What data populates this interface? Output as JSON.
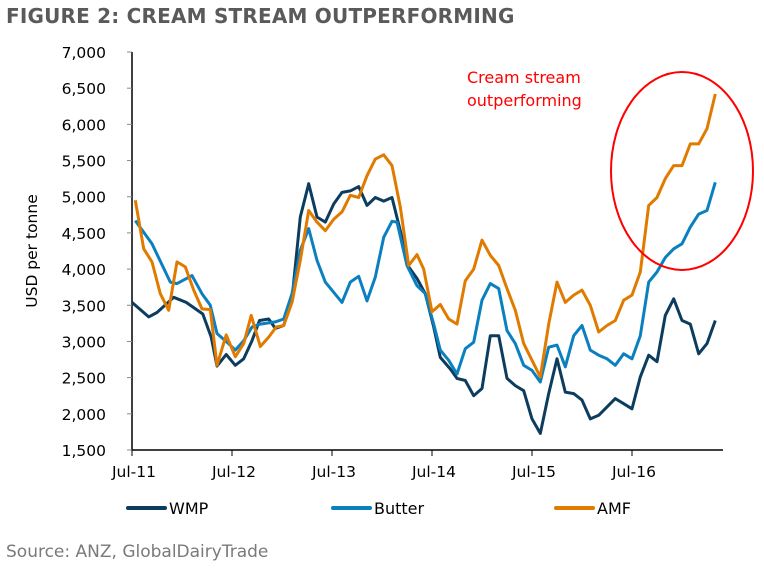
{
  "chart_data": {
    "type": "line",
    "title": "FIGURE 2: CREAM STREAM OUTPERFORMING",
    "xlabel": "",
    "ylabel": "USD per tonne",
    "x_unit": "months since Jul-11",
    "xlim": [
      0,
      71
    ],
    "ylim": [
      1500,
      7000
    ],
    "yticks": [
      1500,
      2000,
      2500,
      3000,
      3500,
      4000,
      4500,
      5000,
      5500,
      6000,
      6500,
      7000
    ],
    "ytick_labels": [
      "1,500",
      "2,000",
      "2,500",
      "3,000",
      "3,500",
      "4,000",
      "4,500",
      "5,000",
      "5,500",
      "6,000",
      "6,500",
      "7,000"
    ],
    "xticks": [
      0,
      12,
      24,
      36,
      48,
      60
    ],
    "xtick_labels": [
      "Jul-11",
      "Jul-12",
      "Jul-13",
      "Jul-14",
      "Jul-15",
      "Jul-16"
    ],
    "grid": false,
    "legend_position": "bottom",
    "annotation": {
      "text_line1": "Cream stream",
      "text_line2": "outperforming",
      "color": "#ff0000"
    },
    "source": "Source: ANZ, GlobalDairyTrade",
    "series": [
      {
        "name": "WMP",
        "color": "#0d3d5e",
        "points": [
          [
            0,
            3540
          ],
          [
            2,
            3340
          ],
          [
            3,
            3400
          ],
          [
            5,
            3610
          ],
          [
            6.5,
            3540
          ],
          [
            8.5,
            3380
          ],
          [
            9.5,
            3060
          ],
          [
            10.2,
            2660
          ],
          [
            11.3,
            2820
          ],
          [
            12.4,
            2670
          ],
          [
            13.4,
            2760
          ],
          [
            14.4,
            3010
          ],
          [
            15.3,
            3290
          ],
          [
            16.4,
            3310
          ],
          [
            17.2,
            3180
          ],
          [
            18.2,
            3220
          ],
          [
            19.2,
            3590
          ],
          [
            20.2,
            4720
          ],
          [
            21.2,
            5180
          ],
          [
            22.2,
            4720
          ],
          [
            23.2,
            4650
          ],
          [
            24.2,
            4900
          ],
          [
            25.2,
            5060
          ],
          [
            26.2,
            5080
          ],
          [
            27.2,
            5140
          ],
          [
            28.2,
            4880
          ],
          [
            29.2,
            4990
          ],
          [
            30.2,
            4940
          ],
          [
            31.2,
            4990
          ],
          [
            32.2,
            4530
          ],
          [
            33.2,
            4030
          ],
          [
            34.2,
            3870
          ],
          [
            35.2,
            3660
          ],
          [
            36.2,
            3200
          ],
          [
            37,
            2780
          ],
          [
            38.2,
            2620
          ],
          [
            39,
            2490
          ],
          [
            40,
            2460
          ],
          [
            41,
            2250
          ],
          [
            42,
            2350
          ],
          [
            43,
            3080
          ],
          [
            44,
            3080
          ],
          [
            45,
            2490
          ],
          [
            46,
            2390
          ],
          [
            47,
            2320
          ],
          [
            48,
            1930
          ],
          [
            49,
            1730
          ],
          [
            50,
            2280
          ],
          [
            51,
            2760
          ],
          [
            52,
            2300
          ],
          [
            53,
            2280
          ],
          [
            54,
            2190
          ],
          [
            55,
            1930
          ],
          [
            56,
            1980
          ],
          [
            58,
            2210
          ],
          [
            59,
            2140
          ],
          [
            60,
            2070
          ],
          [
            61,
            2510
          ],
          [
            62,
            2810
          ],
          [
            63,
            2720
          ],
          [
            64,
            3360
          ],
          [
            65,
            3590
          ],
          [
            66,
            3290
          ],
          [
            67,
            3240
          ],
          [
            68,
            2830
          ],
          [
            69,
            2970
          ],
          [
            70,
            3290
          ]
        ]
      },
      {
        "name": "Butter",
        "color": "#0b80c0",
        "points": [
          [
            0.4,
            4670
          ],
          [
            2.4,
            4350
          ],
          [
            4.6,
            3820
          ],
          [
            5.4,
            3800
          ],
          [
            7.2,
            3910
          ],
          [
            8.4,
            3660
          ],
          [
            9.4,
            3500
          ],
          [
            10.2,
            3110
          ],
          [
            11.4,
            2990
          ],
          [
            12.4,
            2880
          ],
          [
            13.4,
            3010
          ],
          [
            14.4,
            3200
          ],
          [
            15.4,
            3240
          ],
          [
            17.2,
            3270
          ],
          [
            18.2,
            3310
          ],
          [
            19.2,
            3660
          ],
          [
            20.2,
            4260
          ],
          [
            21.2,
            4560
          ],
          [
            22.2,
            4120
          ],
          [
            23.2,
            3820
          ],
          [
            25.2,
            3540
          ],
          [
            26.2,
            3820
          ],
          [
            27.2,
            3900
          ],
          [
            28.2,
            3560
          ],
          [
            29.2,
            3890
          ],
          [
            30.2,
            4440
          ],
          [
            31.2,
            4660
          ],
          [
            31.8,
            4650
          ],
          [
            33,
            4050
          ],
          [
            34.2,
            3770
          ],
          [
            35.2,
            3660
          ],
          [
            36.2,
            3240
          ],
          [
            37,
            2880
          ],
          [
            38,
            2740
          ],
          [
            39,
            2550
          ],
          [
            40,
            2900
          ],
          [
            41,
            2990
          ],
          [
            42,
            3570
          ],
          [
            43,
            3800
          ],
          [
            44,
            3730
          ],
          [
            45,
            3150
          ],
          [
            46,
            2970
          ],
          [
            47,
            2670
          ],
          [
            48,
            2600
          ],
          [
            49,
            2440
          ],
          [
            50,
            2920
          ],
          [
            51,
            2950
          ],
          [
            52,
            2650
          ],
          [
            53,
            3080
          ],
          [
            54,
            3220
          ],
          [
            55,
            2880
          ],
          [
            56,
            2810
          ],
          [
            57,
            2760
          ],
          [
            58,
            2670
          ],
          [
            59,
            2830
          ],
          [
            60,
            2760
          ],
          [
            61,
            3080
          ],
          [
            62,
            3820
          ],
          [
            63,
            3960
          ],
          [
            64,
            4160
          ],
          [
            65,
            4280
          ],
          [
            66,
            4350
          ],
          [
            67,
            4580
          ],
          [
            68,
            4760
          ],
          [
            69,
            4810
          ],
          [
            70,
            5200
          ]
        ]
      },
      {
        "name": "AMF",
        "color": "#e07b00",
        "points": [
          [
            0.4,
            4950
          ],
          [
            1.4,
            4280
          ],
          [
            2.4,
            4100
          ],
          [
            3.4,
            3660
          ],
          [
            4.4,
            3430
          ],
          [
            5.4,
            4100
          ],
          [
            6.4,
            4030
          ],
          [
            7.4,
            3710
          ],
          [
            8.4,
            3450
          ],
          [
            9.4,
            3440
          ],
          [
            10.2,
            2670
          ],
          [
            11.3,
            3090
          ],
          [
            12.4,
            2790
          ],
          [
            13.4,
            2970
          ],
          [
            14.3,
            3360
          ],
          [
            15.4,
            2930
          ],
          [
            16.4,
            3060
          ],
          [
            17.3,
            3200
          ],
          [
            18.2,
            3220
          ],
          [
            19.2,
            3540
          ],
          [
            20.2,
            4120
          ],
          [
            21.2,
            4810
          ],
          [
            22.2,
            4650
          ],
          [
            23.2,
            4530
          ],
          [
            24.2,
            4690
          ],
          [
            25.2,
            4790
          ],
          [
            26.2,
            5020
          ],
          [
            27.2,
            4990
          ],
          [
            28.2,
            5290
          ],
          [
            29.2,
            5520
          ],
          [
            30.2,
            5580
          ],
          [
            31.2,
            5430
          ],
          [
            32.2,
            4860
          ],
          [
            33.2,
            4050
          ],
          [
            34.2,
            4200
          ],
          [
            35,
            4000
          ],
          [
            36,
            3410
          ],
          [
            37,
            3510
          ],
          [
            38,
            3310
          ],
          [
            39,
            3240
          ],
          [
            40,
            3840
          ],
          [
            41,
            4000
          ],
          [
            42,
            4400
          ],
          [
            43,
            4190
          ],
          [
            44,
            4050
          ],
          [
            45,
            3730
          ],
          [
            46,
            3430
          ],
          [
            47,
            2970
          ],
          [
            48,
            2740
          ],
          [
            49,
            2510
          ],
          [
            50,
            3240
          ],
          [
            51,
            3820
          ],
          [
            52,
            3540
          ],
          [
            53,
            3640
          ],
          [
            54,
            3710
          ],
          [
            55,
            3500
          ],
          [
            56,
            3130
          ],
          [
            57,
            3220
          ],
          [
            58,
            3290
          ],
          [
            59,
            3570
          ],
          [
            60,
            3640
          ],
          [
            61,
            3960
          ],
          [
            62,
            4880
          ],
          [
            63,
            4990
          ],
          [
            64,
            5250
          ],
          [
            65,
            5430
          ],
          [
            66,
            5430
          ],
          [
            67,
            5730
          ],
          [
            68,
            5730
          ],
          [
            69,
            5940
          ],
          [
            70,
            6420
          ]
        ]
      }
    ]
  }
}
